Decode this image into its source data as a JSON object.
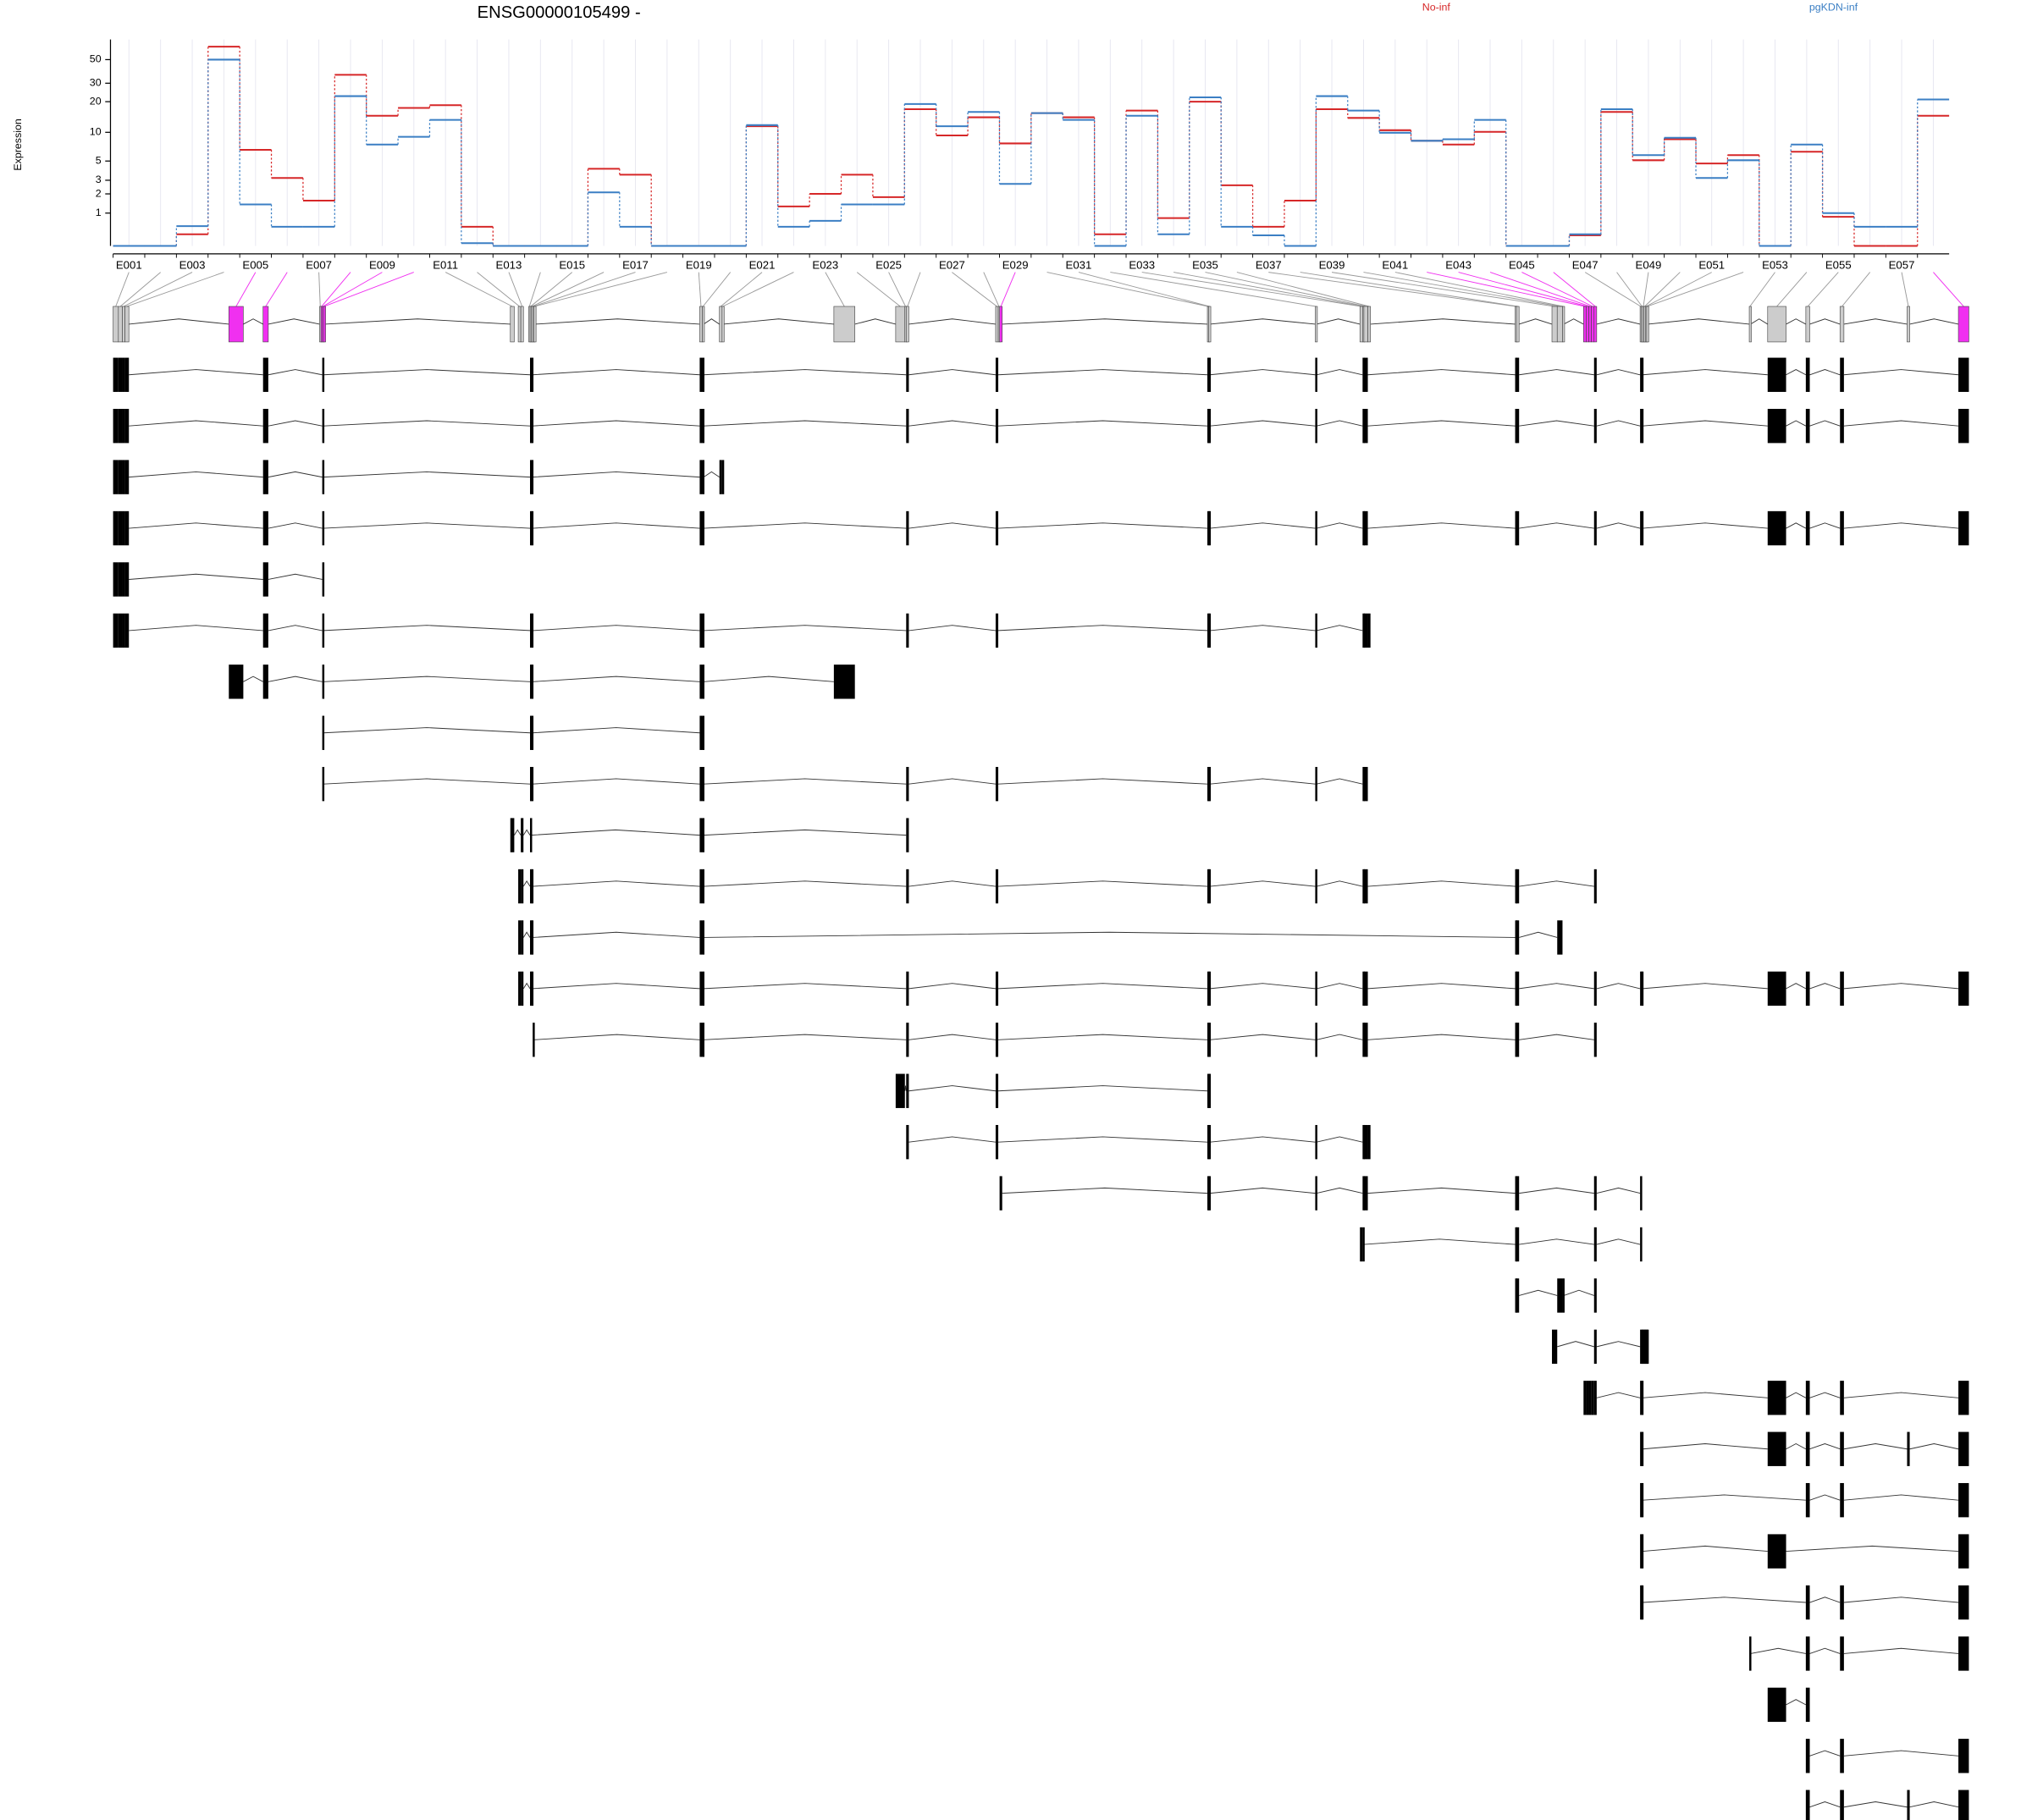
{
  "chart_data": {
    "type": "line",
    "title": "ENSG00000105499 -",
    "y_label": "Expression",
    "y_transform": "log10(x+1)",
    "ylim": [
      0,
      77
    ],
    "yticks": [
      1,
      2,
      3,
      5,
      10,
      20,
      30,
      50
    ],
    "grid": true,
    "categories": [
      "E001",
      null,
      "E003",
      null,
      "E005",
      null,
      "E007",
      null,
      "E009",
      null,
      "E011",
      null,
      "E013",
      null,
      "E015",
      null,
      "E017",
      null,
      "E019",
      null,
      "E021",
      null,
      "E023",
      null,
      "E025",
      null,
      "E027",
      null,
      "E029",
      null,
      "E031",
      null,
      "E033",
      null,
      "E035",
      null,
      "E037",
      null,
      "E039",
      null,
      "E041",
      null,
      "E043",
      null,
      "E045",
      null,
      "E047",
      null,
      "E049",
      null,
      "E051",
      null,
      "E053",
      null,
      "E055",
      null,
      "E057",
      null
    ],
    "series": [
      {
        "name": "No-inf",
        "color": "#d62728",
        "values": [
          0,
          0,
          0.28,
          66,
          6.6,
          3.2,
          1.6,
          36,
          14.6,
          17.4,
          18.5,
          0.5,
          0,
          0,
          0,
          4.1,
          3.5,
          0,
          0,
          0,
          11.5,
          1.3,
          2,
          3.5,
          1.8,
          16.9,
          9.3,
          14.1,
          7.7,
          15.5,
          14.1,
          0.28,
          16.4,
          0.8,
          20,
          2.6,
          0.5,
          1.6,
          16.9,
          13.9,
          10.5,
          8.2,
          7.5,
          10.1,
          0,
          0,
          0.25,
          15.9,
          5.1,
          8.5,
          4.7,
          5.8,
          0,
          6.3,
          0.85,
          0,
          0,
          14.6
        ]
      },
      {
        "name": "pgKDN-inf",
        "color": "#3b7fc4",
        "values": [
          0,
          0,
          0.52,
          50,
          1.4,
          0.5,
          0.5,
          22.6,
          7.5,
          9,
          13.3,
          0.06,
          0,
          0,
          0,
          2.1,
          0.5,
          0,
          0,
          0,
          11.8,
          0.5,
          0.7,
          1.4,
          1.4,
          19,
          11.5,
          15.9,
          2.7,
          15.5,
          13.3,
          0,
          14.6,
          0.28,
          22,
          0.5,
          0.25,
          0,
          22.6,
          16.4,
          9.9,
          8.2,
          8.5,
          13.3,
          0,
          0,
          0.28,
          16.9,
          5.8,
          8.8,
          3.2,
          5.1,
          0,
          7.5,
          1,
          0.5,
          0.5,
          21
        ]
      }
    ],
    "exons": [
      [
        48047843,
        48048022
      ],
      [
        48048022,
        48048156
      ],
      [
        48048156,
        48048245
      ],
      [
        48048245,
        48048379
      ],
      [
        48051773,
        48052265
      ],
      [
        48052935,
        48053113
      ],
      [
        48054855,
        48054900
      ],
      [
        48054900,
        48054945
      ],
      [
        48054945,
        48054989
      ],
      [
        48054989,
        48055034
      ],
      [
        48061332,
        48061466
      ],
      [
        48061600,
        48061688
      ],
      [
        48061688,
        48061778
      ],
      [
        48061957,
        48062001
      ],
      [
        48062001,
        48062046
      ],
      [
        48062046,
        48062091
      ],
      [
        48062091,
        48062135
      ],
      [
        48062135,
        48062180
      ],
      [
        48067763,
        48067852
      ],
      [
        48067852,
        48067897
      ],
      [
        48068433,
        48068522
      ],
      [
        48068522,
        48068567
      ],
      [
        48072319,
        48073033
      ],
      [
        48074418,
        48074731
      ],
      [
        48074731,
        48074775
      ],
      [
        48074775,
        48074865
      ],
      [
        48077813,
        48077902
      ],
      [
        48077902,
        48077947
      ],
      [
        48077947,
        48078036
      ],
      [
        48085003,
        48085048
      ],
      [
        48085048,
        48085092
      ],
      [
        48088666,
        48088711
      ],
      [
        48090184,
        48090274
      ],
      [
        48090274,
        48090318
      ],
      [
        48090318,
        48090452
      ],
      [
        48090452,
        48090542
      ],
      [
        48095455,
        48095499
      ],
      [
        48095499,
        48095589
      ],
      [
        48096705,
        48096884
      ],
      [
        48096884,
        48097063
      ],
      [
        48097063,
        48097107
      ],
      [
        48097777,
        48097867
      ],
      [
        48097867,
        48097956
      ],
      [
        48097956,
        48098045
      ],
      [
        48098045,
        48098135
      ],
      [
        48098135,
        48098224
      ],
      [
        48099698,
        48099743
      ],
      [
        48099743,
        48099786
      ],
      [
        48099786,
        48099832
      ],
      [
        48099832,
        48099877
      ],
      [
        48099877,
        48099921
      ],
      [
        48099921,
        48099966
      ],
      [
        48103405,
        48103450
      ],
      [
        48104030,
        48104656
      ],
      [
        48105326,
        48105460
      ],
      [
        48106487,
        48106620
      ],
      [
        48108765,
        48108854
      ],
      [
        48110507,
        48110863
      ]
    ],
    "significant_exons": [
      4,
      5,
      7,
      8,
      9,
      28,
      41,
      42,
      43,
      44,
      45,
      57
    ],
    "exon_color": "#cccccc",
    "highlight_color": "#f030f0",
    "transcript_color": "#000000",
    "transcripts": [
      [
        0,
        1,
        2,
        3,
        5,
        8,
        14,
        15,
        18,
        19,
        25,
        26,
        29,
        30,
        31,
        33,
        34,
        36,
        37,
        45,
        46,
        47,
        53,
        54,
        55,
        57
      ],
      [
        0,
        1,
        2,
        3,
        5,
        8,
        14,
        15,
        18,
        19,
        25,
        26,
        29,
        30,
        31,
        33,
        34,
        36,
        37,
        45,
        46,
        47,
        53,
        54,
        55,
        57
      ],
      [
        0,
        1,
        2,
        3,
        5,
        8,
        14,
        15,
        18,
        19,
        20,
        21
      ],
      [
        0,
        1,
        2,
        3,
        5,
        8,
        14,
        15,
        18,
        19,
        25,
        26,
        29,
        30,
        31,
        33,
        34,
        36,
        37,
        45,
        46,
        47,
        53,
        54,
        55,
        57
      ],
      [
        0,
        1,
        2,
        3,
        5,
        8
      ],
      [
        0,
        1,
        2,
        3,
        5,
        8,
        14,
        15,
        18,
        19,
        25,
        26,
        29,
        30,
        31,
        33,
        34,
        35
      ],
      [
        4,
        5,
        8,
        14,
        15,
        18,
        19,
        22
      ],
      [
        8,
        14,
        15,
        18,
        19
      ],
      [
        8,
        14,
        15,
        18,
        19,
        25,
        26,
        29,
        30,
        31,
        33,
        34
      ],
      [
        10,
        12,
        14,
        18,
        19,
        25
      ],
      [
        11,
        12,
        14,
        15,
        18,
        19,
        25,
        26,
        29,
        30,
        31,
        33,
        34,
        36,
        37,
        45
      ],
      [
        11,
        12,
        14,
        15,
        18,
        19,
        36,
        37,
        39
      ],
      [
        11,
        12,
        14,
        15,
        18,
        19,
        25,
        26,
        29,
        30,
        31,
        33,
        34,
        36,
        37,
        45,
        46,
        47,
        53,
        54,
        55,
        57
      ],
      [
        16,
        18,
        19,
        25,
        26,
        29,
        30,
        31,
        33,
        34,
        36,
        37,
        45
      ],
      [
        23,
        25,
        26,
        29,
        30
      ],
      [
        25,
        26,
        29,
        30,
        31,
        33,
        34,
        35
      ],
      [
        28,
        29,
        30,
        31,
        33,
        34,
        36,
        37,
        45,
        46
      ],
      [
        32,
        33,
        36,
        37,
        45,
        46
      ],
      [
        36,
        37,
        39,
        40,
        45
      ],
      [
        38,
        45,
        46,
        47,
        48,
        49,
        50,
        51
      ],
      [
        41,
        42,
        43,
        44,
        45,
        46,
        47,
        53,
        54,
        55,
        57
      ],
      [
        46,
        47,
        53,
        54,
        55,
        56,
        57
      ],
      [
        46,
        47,
        54,
        55,
        57
      ],
      [
        46,
        47,
        53,
        57
      ],
      [
        46,
        47,
        54,
        55,
        57
      ],
      [
        52,
        54,
        55,
        57
      ],
      [
        53,
        54
      ],
      [
        54,
        55,
        57
      ],
      [
        54,
        55,
        56,
        57
      ]
    ],
    "xlim": [
      48047843,
      48110863
    ],
    "xticks": [
      48047843,
      48054845,
      48061847,
      48068850,
      48075852,
      48082854,
      48089856,
      48096859,
      48103861,
      48110863
    ]
  }
}
